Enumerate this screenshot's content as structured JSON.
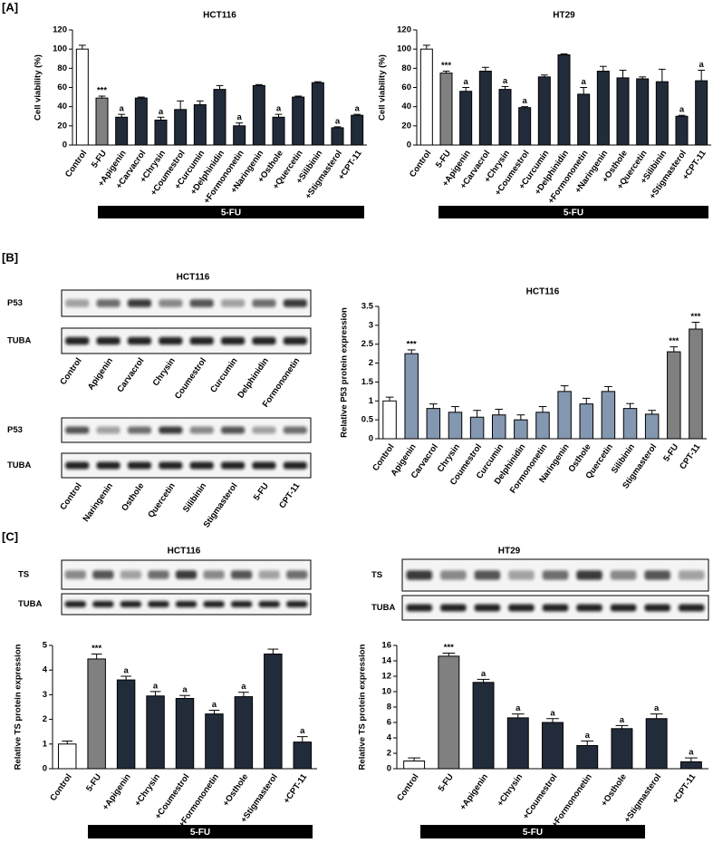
{
  "panels": [
    "[A]",
    "[B]",
    "[C]"
  ],
  "blots": [
    {
      "title": "HCT116",
      "rows": [
        "P53",
        "TUBA"
      ],
      "lanes": [
        "Control",
        "Apigenin",
        "Carvacrol",
        "Chrysin",
        "Coumestrol",
        "Curcumin",
        "Delphinidin",
        "Formononetin"
      ]
    },
    {
      "rows": [
        "P53",
        "TUBA"
      ],
      "lanes": [
        "Control",
        "Naringenin",
        "Osthole",
        "Quercetin",
        "Silibinin",
        "Stigmasterol",
        "5-FU",
        "CPT-11"
      ]
    },
    {
      "title": "HCT116",
      "rows": [
        "TS",
        "TUBA"
      ]
    },
    {
      "title": "HT29",
      "rows": [
        "TS",
        "TUBA"
      ]
    }
  ],
  "chart_data": [
    {
      "type": "bar",
      "title": "HCT116",
      "ylabel": "Cell viability (%)",
      "group_label": "5-FU",
      "categories": [
        "Control",
        "5-FU",
        "+Apigenin",
        "+Carvacrol",
        "+Chrysin",
        "+Coumestrol",
        "+Curcumin",
        "+Delphinidin",
        "+Formononetin",
        "+Naringenin",
        "+Osthole",
        "+Quercetin",
        "+Silibinin",
        "+Stigmasterol",
        "+CPT-11"
      ],
      "values": [
        100,
        49,
        29,
        49,
        26,
        37,
        42,
        58,
        20,
        62,
        29,
        50,
        65,
        18,
        31
      ],
      "errors": [
        4,
        2,
        3,
        1,
        3,
        9,
        4,
        4,
        3,
        1,
        3,
        1,
        1,
        1,
        1
      ],
      "annotations": [
        null,
        "***",
        "a",
        null,
        "a",
        null,
        null,
        null,
        "a",
        null,
        "a",
        null,
        null,
        "a",
        "a"
      ],
      "colors": [
        "#ffffff",
        "#808080",
        "#222b3a",
        "#222b3a",
        "#222b3a",
        "#222b3a",
        "#222b3a",
        "#222b3a",
        "#222b3a",
        "#222b3a",
        "#222b3a",
        "#222b3a",
        "#222b3a",
        "#222b3a",
        "#222b3a"
      ],
      "ylim": [
        0,
        120
      ],
      "yticks": [
        0,
        20,
        40,
        60,
        80,
        100,
        120
      ]
    },
    {
      "type": "bar",
      "title": "HT29",
      "ylabel": "Cell viability (%)",
      "group_label": "5-FU",
      "categories": [
        "Control",
        "5-FU",
        "+Apigenin",
        "+Carvacrol",
        "+Chrysin",
        "+Coumestrol",
        "+Curcumin",
        "+Delphinidin",
        "+Formononetin",
        "+Naringenin",
        "+Osthole",
        "+Quercetin",
        "+Silibinin",
        "+Stigmasterol",
        "+CPT-11"
      ],
      "values": [
        100,
        75,
        56,
        77,
        58,
        39,
        71,
        94,
        53,
        77,
        70,
        69,
        66,
        30,
        67
      ],
      "errors": [
        4,
        2,
        4,
        4,
        3,
        1,
        2,
        1,
        7,
        5,
        8,
        2,
        13,
        1,
        11
      ],
      "annotations": [
        null,
        "***",
        "a",
        null,
        "a",
        "a",
        null,
        null,
        "a",
        null,
        null,
        null,
        null,
        "a",
        "a"
      ],
      "colors": [
        "#ffffff",
        "#808080",
        "#222b3a",
        "#222b3a",
        "#222b3a",
        "#222b3a",
        "#222b3a",
        "#222b3a",
        "#222b3a",
        "#222b3a",
        "#222b3a",
        "#222b3a",
        "#222b3a",
        "#222b3a",
        "#222b3a"
      ],
      "ylim": [
        0,
        120
      ],
      "yticks": [
        0,
        20,
        40,
        60,
        80,
        100,
        120
      ]
    },
    {
      "type": "bar",
      "title": "HCT116",
      "ylabel": "Relative P53 protein expression",
      "categories": [
        "Control",
        "Apigenin",
        "Carvacrol",
        "Chrysin",
        "Coumestrol",
        "Curcumin",
        "Delphinidin",
        "Formononetin",
        "Naringenin",
        "Osthole",
        "Quercetin",
        "Silibinin",
        "Stigmasterol",
        "5-FU",
        "CPT-11"
      ],
      "values": [
        1.0,
        2.25,
        0.8,
        0.7,
        0.57,
        0.63,
        0.5,
        0.7,
        1.25,
        0.92,
        1.25,
        0.8,
        0.65,
        2.3,
        2.9
      ],
      "errors": [
        0.1,
        0.1,
        0.12,
        0.15,
        0.18,
        0.15,
        0.13,
        0.15,
        0.15,
        0.15,
        0.13,
        0.13,
        0.1,
        0.13,
        0.18
      ],
      "annotations": [
        null,
        "***",
        null,
        null,
        null,
        null,
        null,
        null,
        null,
        null,
        null,
        null,
        null,
        "***",
        "***"
      ],
      "colors": [
        "#ffffff",
        "#8497b0",
        "#8497b0",
        "#8497b0",
        "#8497b0",
        "#8497b0",
        "#8497b0",
        "#8497b0",
        "#8497b0",
        "#8497b0",
        "#8497b0",
        "#8497b0",
        "#8497b0",
        "#808080",
        "#808080"
      ],
      "ylim": [
        0,
        3.5
      ],
      "yticks": [
        0,
        0.5,
        1,
        1.5,
        2,
        2.5,
        3,
        3.5
      ]
    },
    {
      "type": "bar",
      "ylabel": "Relative TS protein expression",
      "group_label": "5-FU",
      "categories": [
        "Control",
        "5-FU",
        "+Apigenin",
        "+Chrysin",
        "+Coumestrol",
        "+Formononetin",
        "+Osthole",
        "+Stigmasterol",
        "+CPT-11"
      ],
      "values": [
        1.0,
        4.45,
        3.6,
        2.95,
        2.85,
        2.22,
        2.92,
        4.65,
        1.08
      ],
      "errors": [
        0.12,
        0.2,
        0.15,
        0.18,
        0.12,
        0.15,
        0.18,
        0.2,
        0.22
      ],
      "annotations": [
        null,
        "***",
        "a",
        "a",
        "a",
        "a",
        "a",
        null,
        "a"
      ],
      "colors": [
        "#ffffff",
        "#808080",
        "#222b3a",
        "#222b3a",
        "#222b3a",
        "#222b3a",
        "#222b3a",
        "#222b3a",
        "#222b3a"
      ],
      "ylim": [
        0,
        5
      ],
      "yticks": [
        0,
        1,
        2,
        3,
        4,
        5
      ]
    },
    {
      "type": "bar",
      "ylabel": "Relative TS protein expression",
      "group_label": "5-FU",
      "categories": [
        "Control",
        "5-FU",
        "+Apigenin",
        "+Chrysin",
        "+Coumestrol",
        "+Formononetin",
        "+Osthole",
        "+Stigmasterol",
        "+CPT-11"
      ],
      "values": [
        1.0,
        14.6,
        11.2,
        6.6,
        6.0,
        3.0,
        5.2,
        6.5,
        0.9
      ],
      "errors": [
        0.4,
        0.4,
        0.4,
        0.5,
        0.5,
        0.6,
        0.4,
        0.6,
        0.5
      ],
      "annotations": [
        null,
        "***",
        "a",
        "a",
        "a",
        "a",
        "a",
        "a",
        "a"
      ],
      "colors": [
        "#ffffff",
        "#808080",
        "#222b3a",
        "#222b3a",
        "#222b3a",
        "#222b3a",
        "#222b3a",
        "#222b3a",
        "#222b3a"
      ],
      "ylim": [
        0,
        16
      ],
      "yticks": [
        0,
        2,
        4,
        6,
        8,
        10,
        12,
        14,
        16
      ]
    }
  ]
}
